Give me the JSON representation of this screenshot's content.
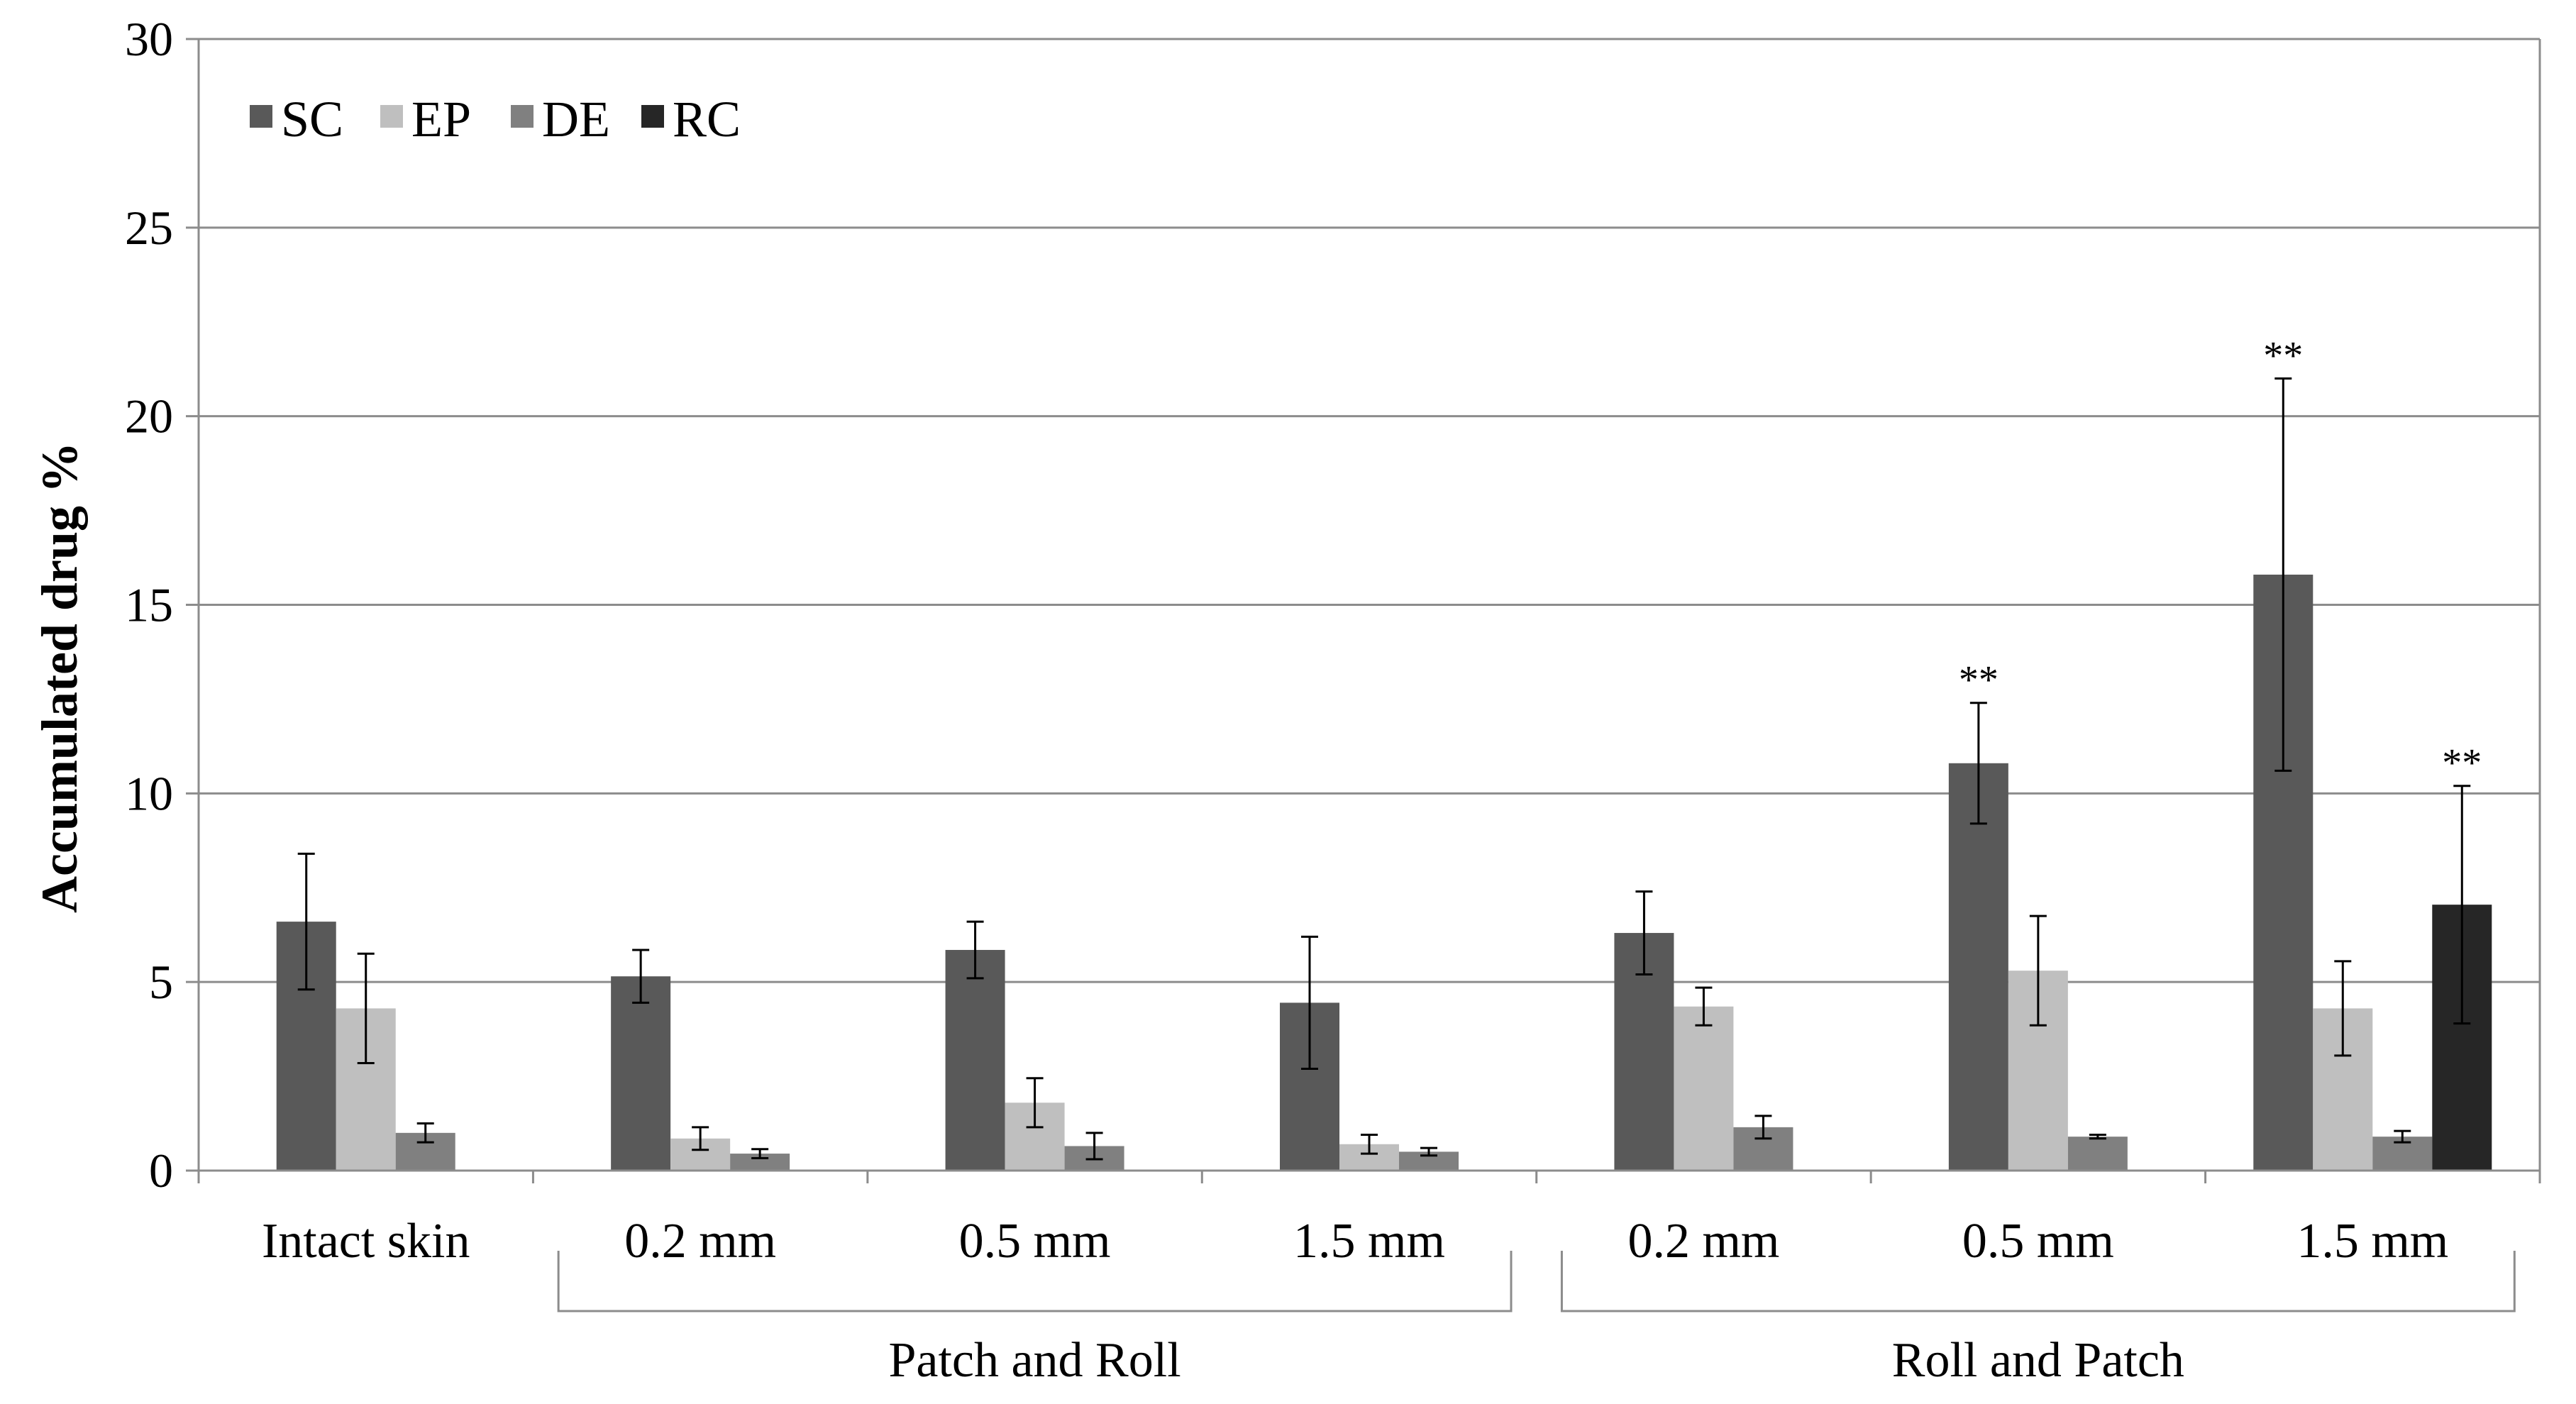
{
  "chart_data": {
    "type": "bar",
    "title": "",
    "xlabel": "",
    "ylabel": "Accumulated  drug  %",
    "ylim": [
      0,
      30
    ],
    "yticks": [
      0,
      5,
      10,
      15,
      20,
      25,
      30
    ],
    "grid": true,
    "legend_position": "top-left",
    "categories": [
      "Intact skin",
      "0.2 mm",
      "0.5 mm",
      "1.5 mm",
      "0.2 mm",
      "0.5 mm",
      "1.5 mm"
    ],
    "groups": [
      {
        "label": "Patch and Roll",
        "start": 1,
        "end": 3
      },
      {
        "label": "Roll and Patch",
        "start": 4,
        "end": 6
      }
    ],
    "series": [
      {
        "name": "SC",
        "color": "#595959",
        "values": [
          6.6,
          5.15,
          5.85,
          4.45,
          6.3,
          10.8,
          15.8
        ],
        "errors": [
          1.8,
          0.7,
          0.75,
          1.75,
          1.1,
          1.6,
          5.2
        ]
      },
      {
        "name": "EP",
        "color": "#bfbfbf",
        "values": [
          4.3,
          0.85,
          1.8,
          0.7,
          4.35,
          5.3,
          4.3
        ],
        "errors": [
          1.45,
          0.3,
          0.65,
          0.25,
          0.5,
          1.45,
          1.25
        ]
      },
      {
        "name": "DE",
        "color": "#808080",
        "values": [
          1.0,
          0.45,
          0.65,
          0.5,
          1.15,
          0.9,
          0.9
        ],
        "errors": [
          0.25,
          0.12,
          0.35,
          0.1,
          0.3,
          0.05,
          0.15
        ]
      },
      {
        "name": "RC",
        "color": "#262626",
        "values": [
          0,
          0,
          0,
          0,
          0,
          0,
          7.05
        ],
        "errors": [
          0,
          0,
          0,
          0,
          0,
          0,
          3.15
        ]
      }
    ],
    "annotations": [
      {
        "text": "**",
        "series": "SC",
        "category_index": 5
      },
      {
        "text": "**",
        "series": "SC",
        "category_index": 6
      },
      {
        "text": "**",
        "series": "RC",
        "category_index": 6
      }
    ]
  }
}
